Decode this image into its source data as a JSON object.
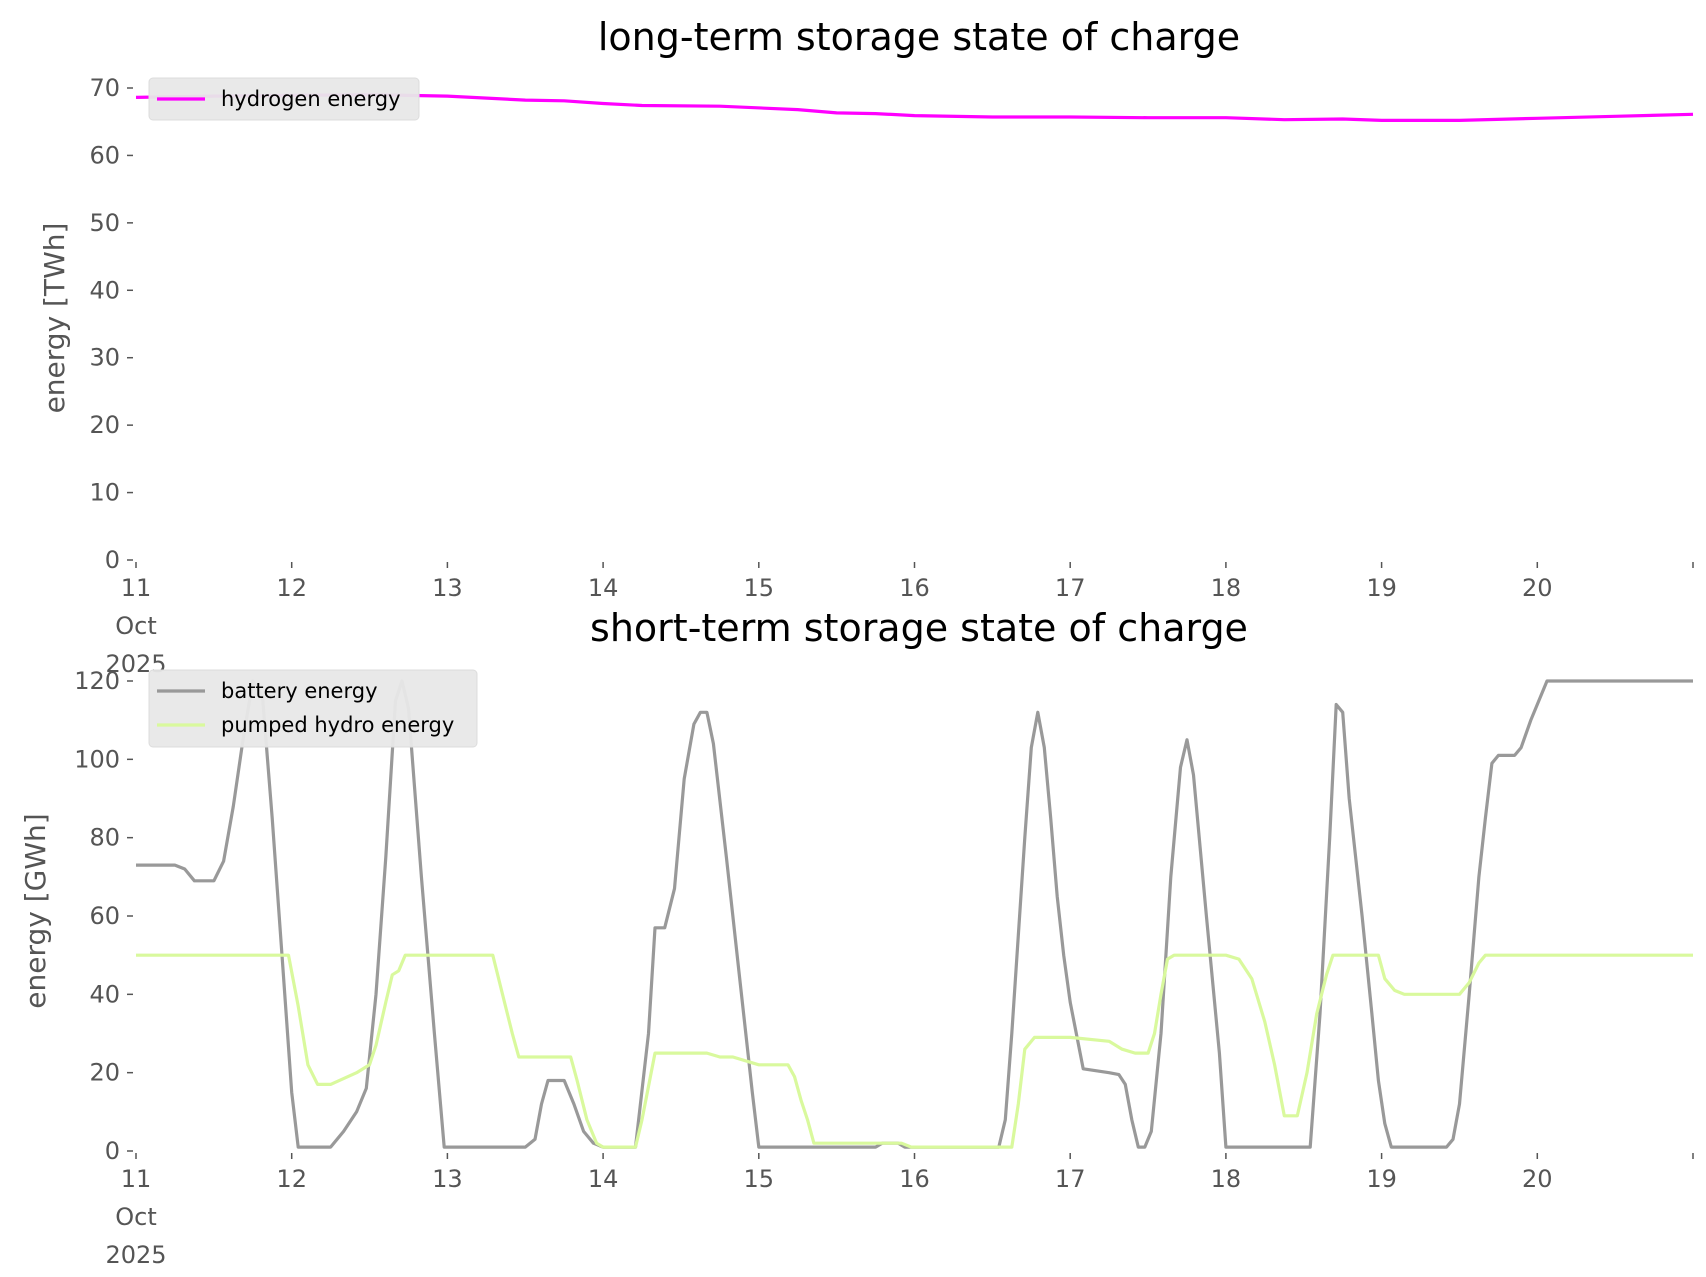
{
  "chart_data": [
    {
      "type": "line",
      "title": "long-term storage state of charge",
      "xlabel": "",
      "ylabel": "energy [TWh]",
      "xlim": [
        "2025-10-11",
        "2025-10-21"
      ],
      "ylim": [
        0,
        70
      ],
      "x_ticks": [
        {
          "date": "2025-10-11",
          "lines": [
            "11",
            "Oct",
            "2025"
          ]
        },
        {
          "date": "2025-10-12",
          "lines": [
            "12"
          ]
        },
        {
          "date": "2025-10-13",
          "lines": [
            "13"
          ]
        },
        {
          "date": "2025-10-14",
          "lines": [
            "14"
          ]
        },
        {
          "date": "2025-10-15",
          "lines": [
            "15"
          ]
        },
        {
          "date": "2025-10-16",
          "lines": [
            "16"
          ]
        },
        {
          "date": "2025-10-17",
          "lines": [
            "17"
          ]
        },
        {
          "date": "2025-10-18",
          "lines": [
            "18"
          ]
        },
        {
          "date": "2025-10-19",
          "lines": [
            "19"
          ]
        },
        {
          "date": "2025-10-20",
          "lines": [
            "20"
          ]
        }
      ],
      "y_ticks": [
        "0",
        "10",
        "20",
        "30",
        "40",
        "50",
        "60",
        "70"
      ],
      "grid": false,
      "legend_position": "top-left",
      "series": [
        {
          "name": "hydrogen energy",
          "color": "#ff00ff",
          "points": [
            [
              "2025-10-11T00:00",
              68.6
            ],
            [
              "2025-10-11T12:00",
              68.8
            ],
            [
              "2025-10-12T00:00",
              68.9
            ],
            [
              "2025-10-12T12:00",
              69.0
            ],
            [
              "2025-10-13T00:00",
              68.8
            ],
            [
              "2025-10-13T12:00",
              68.2
            ],
            [
              "2025-10-13T18:00",
              68.1
            ],
            [
              "2025-10-14T00:00",
              67.7
            ],
            [
              "2025-10-14T06:00",
              67.4
            ],
            [
              "2025-10-14T18:00",
              67.3
            ],
            [
              "2025-10-15T06:00",
              66.8
            ],
            [
              "2025-10-15T12:00",
              66.3
            ],
            [
              "2025-10-15T18:00",
              66.2
            ],
            [
              "2025-10-16T00:00",
              65.9
            ],
            [
              "2025-10-16T12:00",
              65.7
            ],
            [
              "2025-10-17T00:00",
              65.7
            ],
            [
              "2025-10-17T12:00",
              65.6
            ],
            [
              "2025-10-18T00:00",
              65.6
            ],
            [
              "2025-10-18T09:00",
              65.3
            ],
            [
              "2025-10-18T18:00",
              65.4
            ],
            [
              "2025-10-19T00:00",
              65.2
            ],
            [
              "2025-10-19T12:00",
              65.2
            ],
            [
              "2025-10-20T00:00",
              65.5
            ],
            [
              "2025-10-20T12:00",
              65.8
            ],
            [
              "2025-10-21T00:00",
              66.1
            ]
          ]
        }
      ]
    },
    {
      "type": "line",
      "title": "short-term storage state of charge",
      "xlabel": "",
      "ylabel": "energy [GWh]",
      "xlim": [
        "2025-10-11",
        "2025-10-21"
      ],
      "ylim": [
        0,
        120
      ],
      "x_ticks": [
        {
          "date": "2025-10-11",
          "lines": [
            "11",
            "Oct",
            "2025"
          ]
        },
        {
          "date": "2025-10-12",
          "lines": [
            "12"
          ]
        },
        {
          "date": "2025-10-13",
          "lines": [
            "13"
          ]
        },
        {
          "date": "2025-10-14",
          "lines": [
            "14"
          ]
        },
        {
          "date": "2025-10-15",
          "lines": [
            "15"
          ]
        },
        {
          "date": "2025-10-16",
          "lines": [
            "16"
          ]
        },
        {
          "date": "2025-10-17",
          "lines": [
            "17"
          ]
        },
        {
          "date": "2025-10-18",
          "lines": [
            "18"
          ]
        },
        {
          "date": "2025-10-19",
          "lines": [
            "19"
          ]
        },
        {
          "date": "2025-10-20",
          "lines": [
            "20"
          ]
        }
      ],
      "y_ticks": [
        "0",
        "20",
        "40",
        "60",
        "80",
        "100",
        "120"
      ],
      "grid": false,
      "legend_position": "top-left",
      "series": [
        {
          "name": "battery energy",
          "color": "#999999",
          "points": [
            [
              "2025-10-11T00:00",
              73
            ],
            [
              "2025-10-11T06:00",
              73
            ],
            [
              "2025-10-11T07:30",
              72
            ],
            [
              "2025-10-11T09:00",
              69
            ],
            [
              "2025-10-11T12:00",
              69
            ],
            [
              "2025-10-11T13:30",
              74
            ],
            [
              "2025-10-11T15:00",
              88
            ],
            [
              "2025-10-11T16:30",
              105
            ],
            [
              "2025-10-11T18:00",
              120
            ],
            [
              "2025-10-11T19:30",
              116
            ],
            [
              "2025-10-11T21:00",
              85
            ],
            [
              "2025-10-11T22:30",
              50
            ],
            [
              "2025-10-12T00:00",
              15
            ],
            [
              "2025-10-12T01:00",
              1
            ],
            [
              "2025-10-12T06:00",
              1
            ],
            [
              "2025-10-12T08:00",
              5
            ],
            [
              "2025-10-12T10:00",
              10
            ],
            [
              "2025-10-12T11:30",
              16
            ],
            [
              "2025-10-12T13:00",
              40
            ],
            [
              "2025-10-12T14:30",
              75
            ],
            [
              "2025-10-12T16:00",
              115
            ],
            [
              "2025-10-12T17:00",
              120
            ],
            [
              "2025-10-12T18:00",
              113
            ],
            [
              "2025-10-12T20:00",
              70
            ],
            [
              "2025-10-12T22:00",
              30
            ],
            [
              "2025-10-12T23:30",
              1
            ],
            [
              "2025-10-13T12:00",
              1
            ],
            [
              "2025-10-13T13:30",
              3
            ],
            [
              "2025-10-13T14:30",
              12
            ],
            [
              "2025-10-13T15:30",
              18
            ],
            [
              "2025-10-13T18:00",
              18
            ],
            [
              "2025-10-13T19:30",
              12
            ],
            [
              "2025-10-13T21:00",
              5
            ],
            [
              "2025-10-13T22:30",
              2
            ],
            [
              "2025-10-14T00:00",
              1
            ],
            [
              "2025-10-14T05:00",
              1
            ],
            [
              "2025-10-14T07:00",
              30
            ],
            [
              "2025-10-14T08:00",
              57
            ],
            [
              "2025-10-14T09:30",
              57
            ],
            [
              "2025-10-14T11:00",
              67
            ],
            [
              "2025-10-14T12:30",
              95
            ],
            [
              "2025-10-14T14:00",
              109
            ],
            [
              "2025-10-14T15:00",
              112
            ],
            [
              "2025-10-14T16:00",
              112
            ],
            [
              "2025-10-14T17:00",
              104
            ],
            [
              "2025-10-14T19:00",
              75
            ],
            [
              "2025-10-14T21:00",
              45
            ],
            [
              "2025-10-14T23:00",
              15
            ],
            [
              "2025-10-15T00:00",
              1
            ],
            [
              "2025-10-15T18:00",
              1
            ],
            [
              "2025-10-15T19:00",
              2
            ],
            [
              "2025-10-15T21:30",
              2
            ],
            [
              "2025-10-15T22:30",
              1
            ],
            [
              "2025-10-16T13:00",
              1
            ],
            [
              "2025-10-16T14:00",
              8
            ],
            [
              "2025-10-16T15:00",
              30
            ],
            [
              "2025-10-16T16:00",
              55
            ],
            [
              "2025-10-16T17:00",
              80
            ],
            [
              "2025-10-16T18:00",
              103
            ],
            [
              "2025-10-16T19:00",
              112
            ],
            [
              "2025-10-16T20:00",
              103
            ],
            [
              "2025-10-16T21:00",
              85
            ],
            [
              "2025-10-16T22:00",
              65
            ],
            [
              "2025-10-16T23:00",
              50
            ],
            [
              "2025-10-17T00:00",
              38
            ],
            [
              "2025-10-17T02:00",
              21
            ],
            [
              "2025-10-17T06:00",
              20
            ],
            [
              "2025-10-17T07:30",
              19.5
            ],
            [
              "2025-10-17T08:30",
              17
            ],
            [
              "2025-10-17T09:30",
              8
            ],
            [
              "2025-10-17T10:30",
              1
            ],
            [
              "2025-10-17T11:30",
              1
            ],
            [
              "2025-10-17T12:30",
              5
            ],
            [
              "2025-10-17T14:00",
              30
            ],
            [
              "2025-10-17T15:30",
              70
            ],
            [
              "2025-10-17T17:00",
              98
            ],
            [
              "2025-10-17T18:00",
              105
            ],
            [
              "2025-10-17T19:00",
              96
            ],
            [
              "2025-10-17T21:00",
              60
            ],
            [
              "2025-10-17T23:00",
              25
            ],
            [
              "2025-10-18T00:00",
              1
            ],
            [
              "2025-10-18T13:00",
              1
            ],
            [
              "2025-10-18T14:30",
              35
            ],
            [
              "2025-10-18T16:00",
              80
            ],
            [
              "2025-10-18T17:00",
              114
            ],
            [
              "2025-10-18T18:00",
              112
            ],
            [
              "2025-10-18T19:00",
              90
            ],
            [
              "2025-10-18T21:00",
              60
            ],
            [
              "2025-10-18T22:30",
              35
            ],
            [
              "2025-10-18T23:30",
              18
            ],
            [
              "2025-10-19T00:30",
              7
            ],
            [
              "2025-10-19T01:30",
              1
            ],
            [
              "2025-10-19T10:00",
              1
            ],
            [
              "2025-10-19T11:00",
              3
            ],
            [
              "2025-10-19T12:00",
              12
            ],
            [
              "2025-10-19T13:30",
              40
            ],
            [
              "2025-10-19T15:00",
              70
            ],
            [
              "2025-10-19T16:00",
              85
            ],
            [
              "2025-10-19T17:00",
              99
            ],
            [
              "2025-10-19T18:00",
              101
            ],
            [
              "2025-10-19T20:30",
              101
            ],
            [
              "2025-10-19T21:30",
              103
            ],
            [
              "2025-10-19T23:00",
              110
            ],
            [
              "2025-10-20T01:30",
              120
            ],
            [
              "2025-10-21T00:00",
              120
            ]
          ]
        },
        {
          "name": "pumped hydro energy",
          "color": "#d9f99d",
          "points": [
            [
              "2025-10-11T00:00",
              50
            ],
            [
              "2025-10-11T23:30",
              50
            ],
            [
              "2025-10-12T01:00",
              37
            ],
            [
              "2025-10-12T02:30",
              22
            ],
            [
              "2025-10-12T04:00",
              17
            ],
            [
              "2025-10-12T06:00",
              17
            ],
            [
              "2025-10-12T10:00",
              20
            ],
            [
              "2025-10-12T12:00",
              22
            ],
            [
              "2025-10-12T13:00",
              27
            ],
            [
              "2025-10-12T14:30",
              38
            ],
            [
              "2025-10-12T15:30",
              45
            ],
            [
              "2025-10-12T16:30",
              46
            ],
            [
              "2025-10-12T17:30",
              50
            ],
            [
              "2025-10-13T07:00",
              50
            ],
            [
              "2025-10-13T08:30",
              40
            ],
            [
              "2025-10-13T10:00",
              30
            ],
            [
              "2025-10-13T11:00",
              24
            ],
            [
              "2025-10-13T19:00",
              24
            ],
            [
              "2025-10-13T20:00",
              18
            ],
            [
              "2025-10-13T21:30",
              8
            ],
            [
              "2025-10-13T23:00",
              2
            ],
            [
              "2025-10-14T00:00",
              1
            ],
            [
              "2025-10-14T05:00",
              1
            ],
            [
              "2025-10-14T06:00",
              8
            ],
            [
              "2025-10-14T08:00",
              25
            ],
            [
              "2025-10-14T16:00",
              25
            ],
            [
              "2025-10-14T18:00",
              24
            ],
            [
              "2025-10-14T20:00",
              24
            ],
            [
              "2025-10-15T00:00",
              22
            ],
            [
              "2025-10-15T04:30",
              22
            ],
            [
              "2025-10-15T05:30",
              19
            ],
            [
              "2025-10-15T06:30",
              13
            ],
            [
              "2025-10-15T07:30",
              8
            ],
            [
              "2025-10-15T08:30",
              2
            ],
            [
              "2025-10-15T14:00",
              2
            ],
            [
              "2025-10-15T16:00",
              2
            ],
            [
              "2025-10-15T22:00",
              2
            ],
            [
              "2025-10-15T23:30",
              1
            ],
            [
              "2025-10-16T15:00",
              1
            ],
            [
              "2025-10-16T16:00",
              12
            ],
            [
              "2025-10-16T17:00",
              26
            ],
            [
              "2025-10-16T18:30",
              29
            ],
            [
              "2025-10-17T00:00",
              29
            ],
            [
              "2025-10-17T06:00",
              28
            ],
            [
              "2025-10-17T08:00",
              26
            ],
            [
              "2025-10-17T10:00",
              25
            ],
            [
              "2025-10-17T12:00",
              25
            ],
            [
              "2025-10-17T13:00",
              30
            ],
            [
              "2025-10-17T14:00",
              40
            ],
            [
              "2025-10-17T15:00",
              49
            ],
            [
              "2025-10-17T16:00",
              50
            ],
            [
              "2025-10-18T00:00",
              50
            ],
            [
              "2025-10-18T02:00",
              49
            ],
            [
              "2025-10-18T04:00",
              44
            ],
            [
              "2025-10-18T06:00",
              33
            ],
            [
              "2025-10-18T07:30",
              22
            ],
            [
              "2025-10-18T09:00",
              9
            ],
            [
              "2025-10-18T11:00",
              9
            ],
            [
              "2025-10-18T12:30",
              20
            ],
            [
              "2025-10-18T14:00",
              35
            ],
            [
              "2025-10-18T15:30",
              45
            ],
            [
              "2025-10-18T16:30",
              50
            ],
            [
              "2025-10-18T23:30",
              50
            ],
            [
              "2025-10-19T00:30",
              44
            ],
            [
              "2025-10-19T02:00",
              41
            ],
            [
              "2025-10-19T03:30",
              40
            ],
            [
              "2025-10-19T12:00",
              40
            ],
            [
              "2025-10-19T13:30",
              43
            ],
            [
              "2025-10-19T15:00",
              48
            ],
            [
              "2025-10-19T16:00",
              50
            ],
            [
              "2025-10-21T00:00",
              50
            ]
          ]
        }
      ]
    }
  ]
}
